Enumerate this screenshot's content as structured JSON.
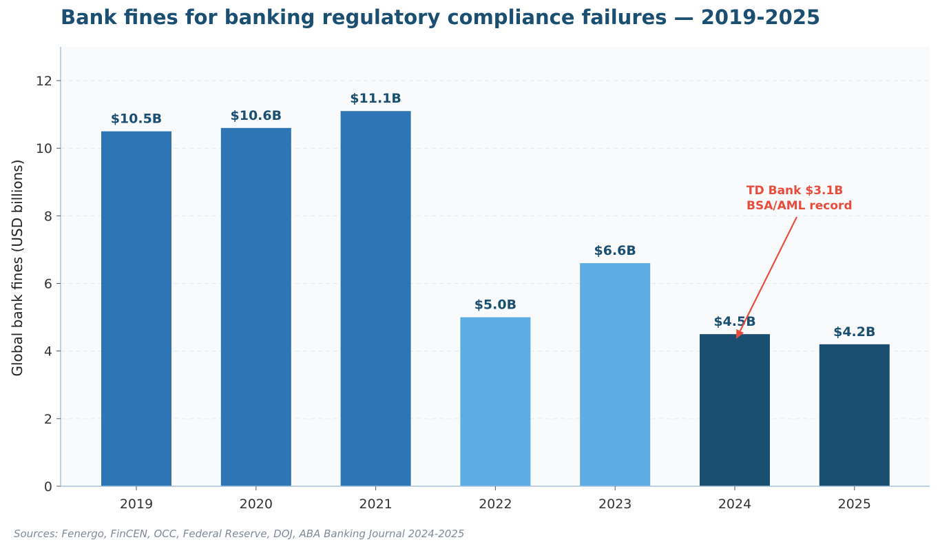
{
  "chart_data": {
    "type": "bar",
    "title": "Bank fines for banking regulatory compliance failures — 2019-2025",
    "xlabel": "",
    "ylabel": "Global bank fines (USD billions)",
    "categories": [
      "2019",
      "2020",
      "2021",
      "2022",
      "2023",
      "2024",
      "2025"
    ],
    "values": [
      10.5,
      10.6,
      11.1,
      5.0,
      6.6,
      4.5,
      4.2
    ],
    "value_labels": [
      "$10.5B",
      "$10.6B",
      "$11.1B",
      "$5.0B",
      "$6.6B",
      "$4.5B",
      "$4.2B"
    ],
    "bar_colors": [
      "#2e75b6",
      "#2e75b6",
      "#2e75b6",
      "#5dade2",
      "#5dade2",
      "#1b4f72",
      "#1b4f72"
    ],
    "ylim": [
      0,
      13
    ],
    "yticks": [
      0,
      2,
      4,
      6,
      8,
      10,
      12
    ],
    "grid": "horizontal dashed",
    "legend": "none",
    "annotation": {
      "lines": [
        "TD Bank $3.1B",
        "BSA/AML record"
      ],
      "target_category": "2024",
      "target_value": 4.5,
      "color": "#e74c3c"
    }
  },
  "source_note": "Sources: Fenergo, FinCEN, OCC, Federal Reserve, DOJ, ABA Banking Journal 2024-2025",
  "colors": {
    "title": "#1b4f72",
    "value_label": "#1b4f72",
    "plot_background": "#f8fafc",
    "axis_line": "#a9c4dc",
    "grid": "#e3e8ee"
  }
}
